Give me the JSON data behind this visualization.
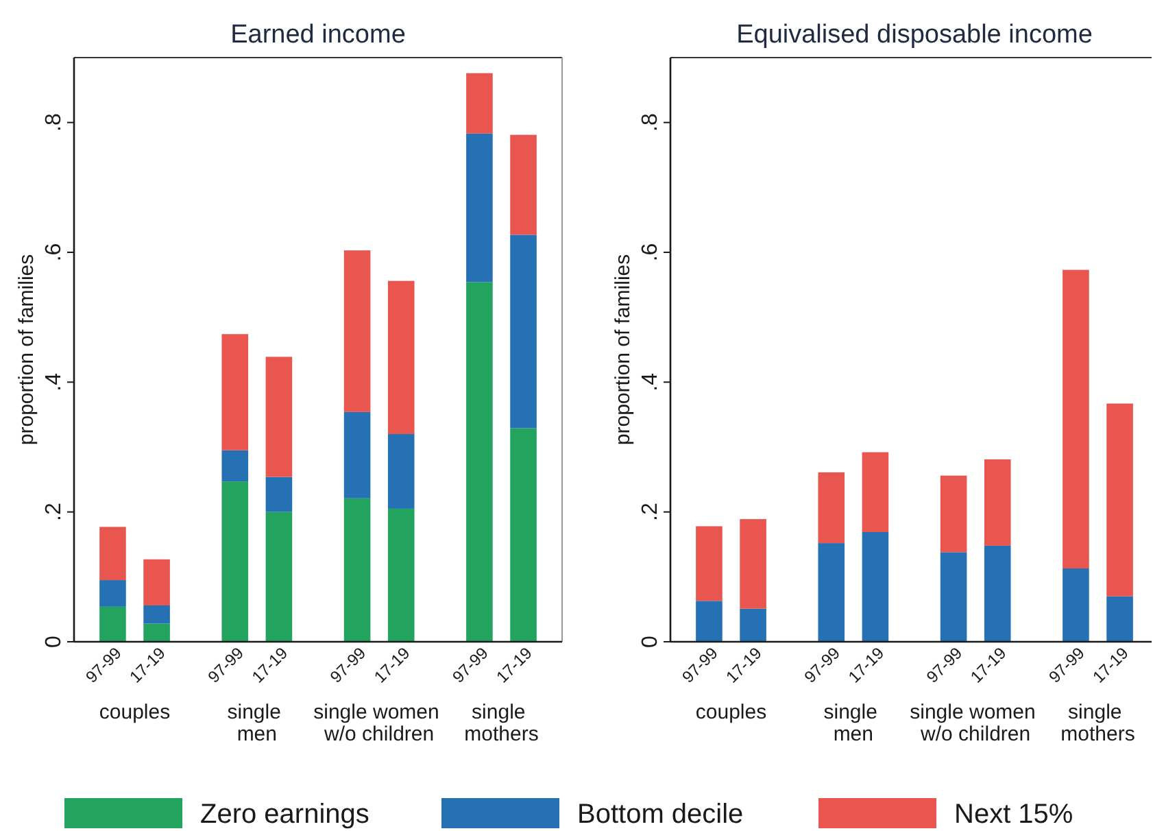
{
  "chart_data": [
    {
      "type": "bar",
      "title": "Earned income",
      "ylabel": "proportion of families",
      "stacked": true,
      "legend": "bottom",
      "categories": [
        "97-99",
        "17-19",
        "97-99",
        "17-19",
        "97-99",
        "17-19",
        "97-99",
        "17-19"
      ],
      "series": [
        {
          "name": "Zero earnings",
          "color": "#23a45e",
          "values": [
            0.054,
            0.028,
            0.247,
            0.2,
            0.221,
            0.205,
            0.554,
            0.329
          ]
        },
        {
          "name": "Bottom decile",
          "color": "#2571b3",
          "values": [
            0.041,
            0.028,
            0.048,
            0.054,
            0.133,
            0.115,
            0.229,
            0.298
          ]
        },
        {
          "name": "Next 15%",
          "color": "#e8564f",
          "values": [
            0.082,
            0.071,
            0.179,
            0.185,
            0.249,
            0.236,
            0.093,
            0.154
          ]
        }
      ],
      "ylim": [
        0,
        0.9
      ],
      "yticks": [
        0,
        {
          "value": 0.2,
          "label": ".2"
        },
        {
          "value": 0.4,
          "label": ".4"
        },
        {
          "value": 0.6,
          "label": ".6"
        },
        {
          "value": 0.8,
          "label": ".8"
        }
      ],
      "annotations": [
        "couples",
        "single\nmen",
        "single women\nw/o children",
        "single\nmothers"
      ]
    },
    {
      "type": "bar",
      "title": "Equivalised disposable income",
      "ylabel": "proportion of families",
      "stacked": true,
      "categories": [
        "97-99",
        "17-19",
        "97-99",
        "17-19",
        "97-99",
        "17-19",
        "97-99",
        "17-19"
      ],
      "series": [
        {
          "color": "#2571b3",
          "values": [
            0.063,
            0.051,
            0.152,
            0.169,
            0.138,
            0.148,
            0.113,
            0.07
          ]
        },
        {
          "color": "#e8564f",
          "values": [
            0.115,
            0.138,
            0.109,
            0.123,
            0.118,
            0.133,
            0.46,
            0.297
          ]
        }
      ],
      "ylim": [
        0,
        0.9
      ],
      "yticks": [
        0,
        {
          "value": 0.2,
          "label": ".2"
        },
        {
          "value": 0.4,
          "label": ".4"
        },
        {
          "value": 0.6,
          "label": ".6"
        },
        {
          "value": 0.8,
          "label": ".8"
        }
      ],
      "annotations": [
        "couples",
        "single\nmen",
        "single women\nw/o children",
        "single\nmothers"
      ]
    }
  ]
}
